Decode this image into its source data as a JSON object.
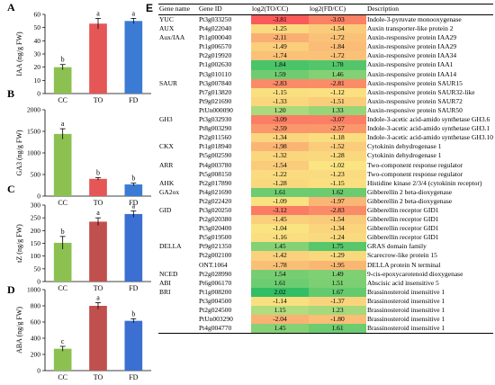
{
  "chart_data": [
    {
      "type": "bar",
      "panel": "A",
      "categories": [
        "CC",
        "TO",
        "FD"
      ],
      "values": [
        20,
        53,
        55
      ],
      "errors": [
        2,
        4,
        2
      ],
      "letters": [
        "b",
        "a",
        "a"
      ],
      "colors": [
        "#8cc152",
        "#e45756",
        "#3b7bd4"
      ],
      "ylabel": "IAA (ng/g FW)",
      "ylim": [
        0,
        60
      ],
      "yticks": [
        0,
        10,
        20,
        30,
        40,
        50,
        60
      ]
    },
    {
      "type": "bar",
      "panel": "B",
      "categories": [
        "CC",
        "TO",
        "FD"
      ],
      "values": [
        1440,
        400,
        270
      ],
      "errors": [
        120,
        30,
        30
      ],
      "letters": [
        "a",
        "b",
        "b"
      ],
      "colors": [
        "#8cc152",
        "#e45756",
        "#3b7bd4"
      ],
      "ylabel": "GA3 (ng/g FW)",
      "ylim": [
        0,
        2000
      ],
      "yticks": [
        0,
        500,
        1000,
        1500,
        2000
      ]
    },
    {
      "type": "bar",
      "panel": "C",
      "categories": [
        "CC",
        "TO",
        "FD"
      ],
      "values": [
        152,
        235,
        265
      ],
      "errors": [
        25,
        15,
        12
      ],
      "letters": [
        "b",
        "a",
        "a"
      ],
      "colors": [
        "#8cc152",
        "#c0504d",
        "#3b6fd1"
      ],
      "ylabel": "tZ (ng/g FW)",
      "ylim": [
        0,
        300
      ],
      "yticks": [
        0,
        50,
        100,
        150,
        200,
        250,
        300
      ]
    },
    {
      "type": "bar",
      "panel": "D",
      "categories": [
        "CC",
        "TO",
        "FD"
      ],
      "values": [
        270,
        800,
        615
      ],
      "errors": [
        30,
        40,
        25
      ],
      "letters": [
        "c",
        "a",
        "b"
      ],
      "colors": [
        "#8cc152",
        "#c0504d",
        "#3b6fd1"
      ],
      "ylabel": "ABA (ng/g FW)",
      "ylim": [
        0,
        1000
      ],
      "yticks": [
        0,
        200,
        400,
        600,
        800,
        1000
      ]
    },
    {
      "type": "table",
      "panel": "E",
      "columns": [
        "Gene name",
        "Gene ID",
        "log2(TO/CC)",
        "log2(FD/CC)",
        "Description"
      ],
      "rows": [
        [
          "YUC",
          "Pt3g033250",
          "-3.81",
          "-3.03",
          "Indole-3-pyruvate monooxygenase"
        ],
        [
          "AUX",
          "Pt4g022040",
          "-1.25",
          "-1.54",
          "Auxin transporter-like protein 2"
        ],
        [
          "Aux/IAA",
          "Pt1g000040",
          "-2.11",
          "-1.72",
          "Auxin-responsive protein IAA29"
        ],
        [
          "",
          "Pt1g006570",
          "-1.49",
          "-1.84",
          "Auxin-responsive protein IAA29"
        ],
        [
          "",
          "Pt2g019920",
          "-1.74",
          "-1.72",
          "Auxin-responsive protein IAA34"
        ],
        [
          "",
          "Pt1g002630",
          "1.84",
          "1.78",
          "Auxin-responsive protein IAA1"
        ],
        [
          "",
          "Pt3g010110",
          "1.59",
          "1.46",
          "Auxin-responsive protein IAA14"
        ],
        [
          "SAUR",
          "Pt3g007840",
          "-2.83",
          "-2.81",
          "Auxin-responsive protein SAUR15"
        ],
        [
          "",
          "Pt7g013820",
          "-1.15",
          "-1.12",
          "Auxin-responsive protein SAUR32-like"
        ],
        [
          "",
          "Pt9g021690",
          "-1.33",
          "-1.51",
          "Auxin-responsive protein SAUR72"
        ],
        [
          "",
          "PtUn000090",
          "1.20",
          "1.33",
          "Auxin-responsive protein SAUR50"
        ],
        [
          "GH3",
          "Pt3g032930",
          "-3.09",
          "-3.07",
          "Indole-3-acetic acid-amido synthetase GH3.6"
        ],
        [
          "",
          "Pt8g003290",
          "-2.59",
          "-2.57",
          "Indole-3-acetic acid-amido synthetase GH3.1"
        ],
        [
          "",
          "Pt2g011560",
          "-1.34",
          "-1.18",
          "Indole-3-acetic acid-amido synthetase GH3.10"
        ],
        [
          "CKX",
          "Pt1g018940",
          "-1.98",
          "-1.52",
          "Cytokinin dehydrogenase 1"
        ],
        [
          "",
          "Pt5g002590",
          "-1.32",
          "-1.28",
          "Cytokinin dehydrogenase 1"
        ],
        [
          "ARR",
          "Pt4g003780",
          "-1.54",
          "-1.02",
          "Two-component response regulator"
        ],
        [
          "",
          "Pt5g008150",
          "-1.22",
          "-1.23",
          "Two-component response regulator"
        ],
        [
          "AHK",
          "Pt2g017890",
          "-1.28",
          "-1.15",
          "Histidine kinase 2/3/4 (cytokinin receptor)"
        ],
        [
          "GA2ox",
          "Pt4g021690",
          "1.61",
          "1.62",
          "Gibberellin 2 beta-dioxygenase"
        ],
        [
          "",
          "Pt2g022420",
          "-1.09",
          "-1.97",
          "Gibberellin 2 beta-dioxygenase"
        ],
        [
          "GID",
          "Pt3g020250",
          "-3.12",
          "-2.83",
          "Gibberellin receptor GID1"
        ],
        [
          "",
          "Pt2g020380",
          "-1.45",
          "-1.54",
          "Gibberellin receptor GID1"
        ],
        [
          "",
          "Pt3g020400",
          "-1.04",
          "-1.34",
          "Gibberellin receptor GID1"
        ],
        [
          "",
          "Pt5g019500",
          "-1.16",
          "-1.24",
          "Gibberellin receptor GID1"
        ],
        [
          "DELLA",
          "Pt9g021350",
          "1.45",
          "1.75",
          "GRAS domain family"
        ],
        [
          "",
          "Pt2g002100",
          "-1.42",
          "-1.29",
          "Scarecrow-like protein 15"
        ],
        [
          "",
          "ONT.1064",
          "-1.78",
          "-1.95",
          "DELLA protein N terminal"
        ],
        [
          "NCED",
          "Pt2g028990",
          "1.54",
          "1.49",
          "9-cis-epoxycarotenoid dioxygenase"
        ],
        [
          "ABI",
          "Pt6g006170",
          "1.61",
          "1.51",
          "Abscisic acid insensitive 5"
        ],
        [
          "BRI",
          "Pt1g008200",
          "2.02",
          "1.67",
          "Brassinosteroid insensitive 1"
        ],
        [
          "",
          "Pt3g004500",
          "-1.14",
          "-1.37",
          "Brassinosteroid insensitive 1"
        ],
        [
          "",
          "Pt2g024500",
          "1.15",
          "1.23",
          "Brassinosteroid insensitive 1"
        ],
        [
          "",
          "PtUn003290",
          "-2.04",
          "-1.80",
          "Brassinosteroid insensitive 1"
        ],
        [
          "",
          "Pt4g004770",
          "1.45",
          "1.61",
          "Brassinosteroid insensitive 1"
        ]
      ]
    }
  ]
}
